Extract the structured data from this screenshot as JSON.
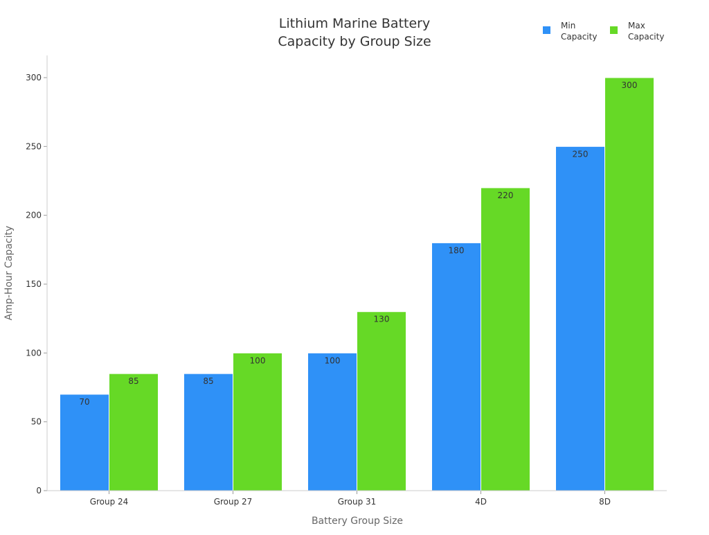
{
  "chart_data": {
    "type": "bar",
    "title_lines": [
      "Lithium Marine Battery",
      "Capacity by Group Size"
    ],
    "xlabel": "Battery Group Size",
    "ylabel": "Amp-Hour Capacity",
    "categories": [
      "Group 24",
      "Group 27",
      "Group 31",
      "4D",
      "8D"
    ],
    "series": [
      {
        "name": "Min Capacity",
        "legend_lines": [
          "Min",
          "Capacity"
        ],
        "color": "#2f91f7",
        "values": [
          70,
          85,
          100,
          180,
          250
        ]
      },
      {
        "name": "Max Capacity",
        "legend_lines": [
          "Max",
          "Capacity"
        ],
        "color": "#66d926",
        "values": [
          85,
          100,
          130,
          220,
          300
        ]
      }
    ],
    "ylim": [
      0,
      300
    ],
    "yticks": [
      0,
      50,
      100,
      150,
      200,
      250,
      300
    ],
    "grid": false,
    "legend": "top-right",
    "data_labels": true
  }
}
